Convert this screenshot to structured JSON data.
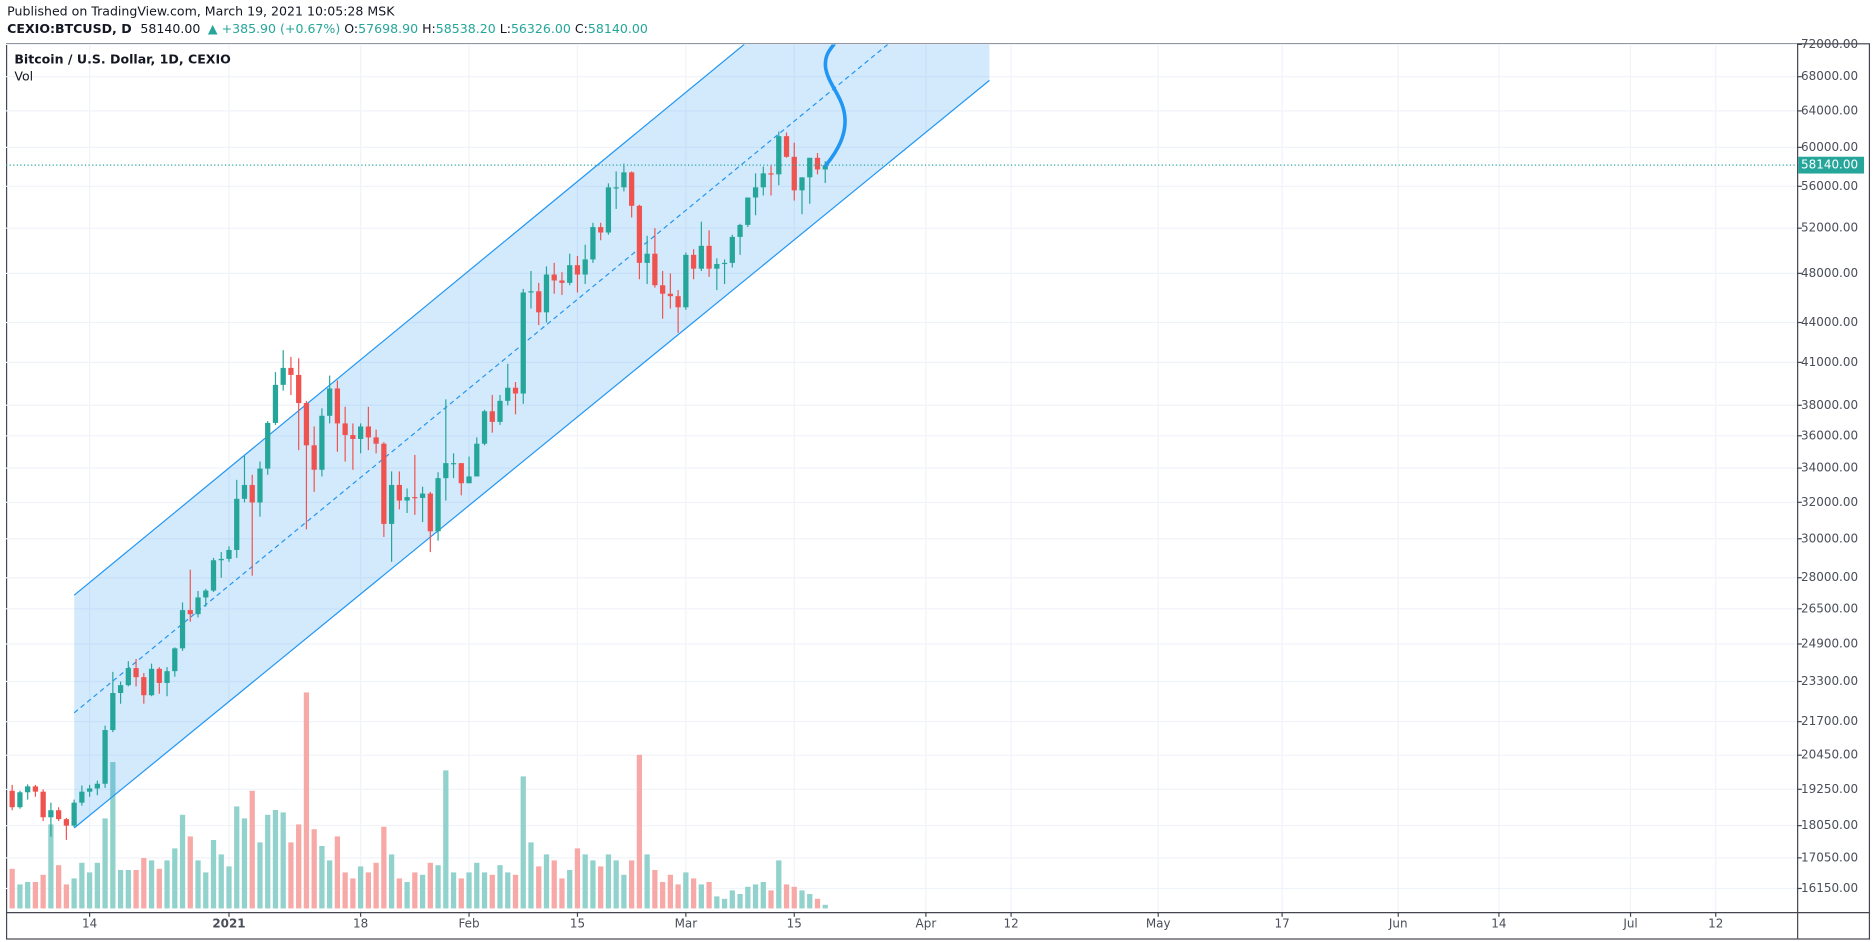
{
  "header": {
    "published": "Published on TradingView.com, March 19, 2021 10:05:28 MSK"
  },
  "legend": {
    "symbol": "CEXIO:BTCUSD, D",
    "last": "58140.00",
    "change": "▲ +385.90 (+0.67%)",
    "ohlc": [
      {
        "label": "O:",
        "value": "57698.90"
      },
      {
        "label": "H:",
        "value": "58538.20"
      },
      {
        "label": "L:",
        "value": "56326.00"
      },
      {
        "label": "C:",
        "value": "58140.00"
      }
    ]
  },
  "chart_data": {
    "type": "candlestick",
    "title": "Bitcoin / U.S. Dollar, 1D, CEXIO",
    "volume_label": "Vol",
    "log_scale": true,
    "grid": true,
    "up_color": "#26a69a",
    "down_color": "#ef5350",
    "volume_up_color": "#92d2cc",
    "volume_down_color": "#f7a9a7",
    "ylim": [
      15590,
      72000
    ],
    "yticks": [
      {
        "value": 72000,
        "label": "72000.00"
      },
      {
        "value": 68000,
        "label": "68000.00"
      },
      {
        "value": 64000,
        "label": "64000.00"
      },
      {
        "value": 60000,
        "label": "60000.00"
      },
      {
        "value": 56000,
        "label": "56000.00"
      },
      {
        "value": 52000,
        "label": "52000.00"
      },
      {
        "value": 48000,
        "label": "48000.00"
      },
      {
        "value": 44000,
        "label": "44000.00"
      },
      {
        "value": 41000,
        "label": "41000.00"
      },
      {
        "value": 38000,
        "label": "38000.00"
      },
      {
        "value": 36000,
        "label": "36000.00"
      },
      {
        "value": 34000,
        "label": "34000.00"
      },
      {
        "value": 32000,
        "label": "32000.00"
      },
      {
        "value": 30000,
        "label": "30000.00"
      },
      {
        "value": 28000,
        "label": "28000.00"
      },
      {
        "value": 26500,
        "label": "26500.00"
      },
      {
        "value": 24900,
        "label": "24900.00"
      },
      {
        "value": 23300,
        "label": "23300.00"
      },
      {
        "value": 21700,
        "label": "21700.00"
      },
      {
        "value": 20450,
        "label": "20450.00"
      },
      {
        "value": 19250,
        "label": "19250.00"
      },
      {
        "value": 18050,
        "label": "18050.00"
      },
      {
        "value": 17050,
        "label": "17050.00"
      },
      {
        "value": 16150,
        "label": "16150.00"
      }
    ],
    "xlim": [
      -0.8,
      230.5
    ],
    "xticks": [
      {
        "value": 10,
        "label": "14"
      },
      {
        "value": 28,
        "label": "2021"
      },
      {
        "value": 45,
        "label": "18"
      },
      {
        "value": 59,
        "label": "Feb"
      },
      {
        "value": 73,
        "label": "15"
      },
      {
        "value": 87,
        "label": "Mar"
      },
      {
        "value": 101,
        "label": "15"
      },
      {
        "value": 118,
        "label": "Apr"
      },
      {
        "value": 129,
        "label": "12"
      },
      {
        "value": 148,
        "label": "May"
      },
      {
        "value": 164,
        "label": "17"
      },
      {
        "value": 179,
        "label": "Jun"
      },
      {
        "value": 192,
        "label": "14"
      },
      {
        "value": 209,
        "label": "Jul"
      },
      {
        "value": 220,
        "label": "12"
      }
    ],
    "last_price": {
      "value": 58140,
      "label": "58140.00",
      "color": "#26a69a"
    },
    "candles": {
      "open": [
        19200,
        18650,
        19150,
        19350,
        19170,
        18320,
        18550,
        18260,
        18050,
        18800,
        19170,
        19280,
        19440,
        21380,
        22830,
        23150,
        23860,
        23480,
        22740,
        23830,
        23240,
        23730,
        24710,
        26440,
        26250,
        27040,
        27370,
        28880,
        28950,
        29410,
        32200,
        33000,
        31990,
        33970,
        36830,
        39400,
        40600,
        40100,
        38150,
        35400,
        33900,
        37300,
        39150,
        36800,
        36050,
        35800,
        36600,
        35900,
        35500,
        30800,
        33000,
        32100,
        32300,
        32250,
        32500,
        30400,
        33400,
        34300,
        34300,
        33100,
        33500,
        35500,
        37600,
        36900,
        38300,
        39200,
        38800,
        46400,
        46500,
        44800,
        47900,
        47400,
        47200,
        48700,
        47900,
        49200,
        52100,
        51600,
        55900,
        55900,
        57400,
        54100,
        48900,
        49700,
        47000,
        46300,
        46100,
        45200,
        49600,
        48400,
        50400,
        48400,
        48800,
        48900,
        51200,
        52300,
        54900,
        55900,
        57300,
        57200,
        61200,
        59000,
        55600,
        56900,
        58900,
        57698.9
      ],
      "high": [
        19400,
        19200,
        19420,
        19400,
        19250,
        18800,
        18650,
        18300,
        18900,
        19380,
        19400,
        19550,
        21550,
        23700,
        23300,
        24150,
        24250,
        23650,
        24050,
        23900,
        23900,
        24750,
        26800,
        28400,
        27350,
        27450,
        29000,
        29300,
        29600,
        33300,
        34750,
        33600,
        34400,
        36950,
        40300,
        41900,
        41400,
        41300,
        38300,
        36600,
        37800,
        40050,
        39700,
        37900,
        36800,
        36800,
        37900,
        36400,
        35600,
        33800,
        33800,
        32800,
        34800,
        32900,
        32600,
        33750,
        38400,
        34900,
        34300,
        34700,
        35900,
        37700,
        38700,
        38700,
        40900,
        39600,
        46700,
        48200,
        47200,
        48600,
        48900,
        48100,
        49700,
        49500,
        50500,
        52500,
        52500,
        56300,
        57500,
        58300,
        57500,
        54200,
        51300,
        52000,
        48200,
        48000,
        46600,
        49800,
        50100,
        52600,
        51800,
        49300,
        49200,
        51400,
        52400,
        54900,
        57300,
        58000,
        58100,
        61700,
        61600,
        60500,
        56900,
        58900,
        59400,
        58538.2
      ],
      "low": [
        18550,
        18600,
        18900,
        19000,
        18200,
        17700,
        18200,
        17600,
        18000,
        18700,
        19000,
        19050,
        19300,
        21300,
        22400,
        23100,
        23100,
        22400,
        22700,
        22800,
        22700,
        23500,
        24600,
        25900,
        26100,
        26600,
        27300,
        28000,
        28800,
        29000,
        32000,
        28100,
        31200,
        33600,
        36700,
        39000,
        38700,
        35100,
        30500,
        32600,
        33500,
        36800,
        35000,
        34400,
        33900,
        34900,
        35100,
        34900,
        30100,
        28800,
        31600,
        31400,
        31300,
        30900,
        29300,
        29900,
        32100,
        33400,
        32400,
        33100,
        33500,
        35400,
        36200,
        36700,
        38000,
        37400,
        38100,
        45100,
        43800,
        44000,
        46300,
        46200,
        47000,
        46400,
        47100,
        48900,
        50900,
        51400,
        53800,
        55500,
        53000,
        47500,
        47100,
        46800,
        44300,
        45100,
        43200,
        45000,
        47500,
        48200,
        47700,
        46600,
        47100,
        48500,
        49600,
        52100,
        53200,
        55100,
        55100,
        56100,
        58900,
        54600,
        53300,
        54300,
        57200,
        56326
      ],
      "close": [
        18650,
        19150,
        19350,
        19170,
        18320,
        18550,
        18260,
        18050,
        18800,
        19170,
        19280,
        19440,
        21380,
        22830,
        23150,
        23860,
        23480,
        22740,
        23830,
        23240,
        23730,
        24710,
        26440,
        26250,
        27040,
        27370,
        28880,
        28950,
        29410,
        32200,
        33000,
        31990,
        33970,
        36830,
        39400,
        40600,
        40100,
        38150,
        35400,
        33900,
        37300,
        39150,
        36800,
        36050,
        35800,
        36600,
        35900,
        35500,
        30800,
        33000,
        32100,
        32300,
        32250,
        32500,
        30400,
        33400,
        34300,
        34300,
        33100,
        33500,
        35500,
        37600,
        36900,
        38300,
        39200,
        38800,
        46400,
        46500,
        44800,
        47900,
        47400,
        47200,
        48700,
        47900,
        49200,
        52100,
        51600,
        55900,
        55900,
        57400,
        54100,
        48900,
        49700,
        47000,
        46300,
        46100,
        45200,
        49600,
        48400,
        50400,
        48400,
        48800,
        48900,
        51200,
        52300,
        54900,
        55900,
        57300,
        57200,
        61200,
        59000,
        55600,
        56900,
        58900,
        57698.9,
        58140
      ]
    },
    "volume": {
      "axis": "y2",
      "values": [
        33,
        20,
        22,
        22,
        28,
        70,
        36,
        20,
        25,
        38,
        30,
        38,
        75,
        122,
        32,
        32,
        32,
        42,
        40,
        33,
        40,
        50,
        78,
        60,
        40,
        30,
        57,
        45,
        35,
        85,
        75,
        98,
        55,
        78,
        82,
        80,
        55,
        70,
        180,
        66,
        52,
        40,
        60,
        30,
        25,
        35,
        30,
        38,
        68,
        45,
        25,
        22,
        30,
        28,
        38,
        36,
        115,
        30,
        25,
        30,
        38,
        30,
        28,
        36,
        30,
        28,
        110,
        55,
        35,
        45,
        40,
        25,
        32,
        50,
        45,
        40,
        35,
        45,
        40,
        28,
        40,
        128,
        45,
        32,
        22,
        28,
        20,
        30,
        25,
        20,
        22,
        10,
        8,
        15,
        12,
        18,
        20,
        22,
        15,
        40,
        20,
        18,
        15,
        12,
        8,
        3
      ]
    },
    "y2lim": [
      0,
      720
    ]
  }
}
